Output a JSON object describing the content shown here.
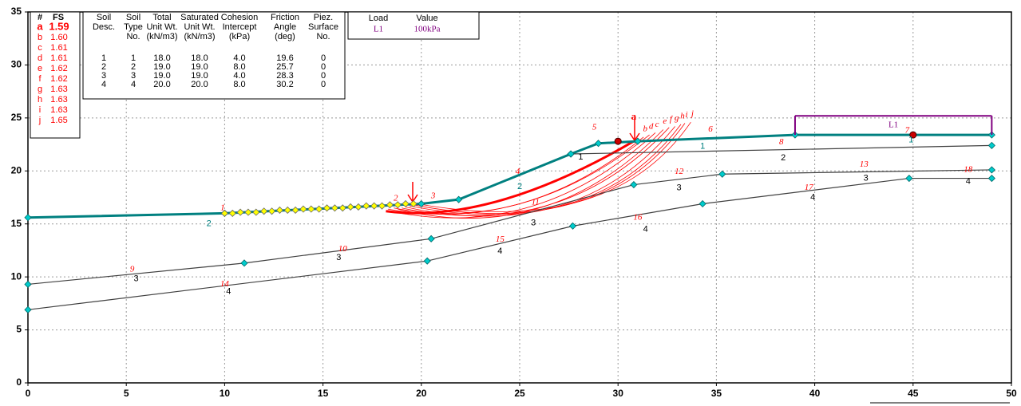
{
  "chart_data": {
    "type": "line",
    "xlim": [
      0,
      50
    ],
    "xticks": [
      0,
      5,
      10,
      15,
      20,
      25,
      30,
      35,
      40,
      45,
      50
    ],
    "ylim": [
      0,
      35
    ],
    "yticks": [
      0,
      5,
      10,
      15,
      20,
      25,
      30,
      35
    ],
    "grid": true,
    "boundaries": [
      {
        "color": "#008080",
        "x": [
          0,
          10,
          20,
          21.9,
          27.6,
          29,
          31,
          39,
          49
        ],
        "values": [
          15.6,
          16,
          16.9,
          17.3,
          21.6,
          22.6,
          22.8,
          23.4,
          23.4
        ]
      },
      {
        "color": "#404040",
        "x": [
          27.6,
          49
        ],
        "values": [
          21.6,
          22.4
        ]
      },
      {
        "color": "#404040",
        "x": [
          0,
          11,
          20.5,
          30.8,
          35.3,
          49
        ],
        "values": [
          9.3,
          11.3,
          13.6,
          18.7,
          19.7,
          20.1
        ]
      },
      {
        "color": "#404040",
        "x": [
          0,
          20.3,
          27.7,
          34.3,
          44.8,
          49
        ],
        "values": [
          6.9,
          11.5,
          14.8,
          16.9,
          19.3,
          19.3
        ]
      }
    ],
    "search_points": {
      "color": "#ffff00",
      "x": [
        10.0,
        10.4,
        10.8,
        11.2,
        11.6,
        12.0,
        12.4,
        12.8,
        13.2,
        13.6,
        14.0,
        14.4,
        14.8,
        15.2,
        15.6,
        16.0,
        16.4,
        16.8,
        17.2,
        17.6,
        18.0,
        18.4,
        18.8,
        19.2,
        19.6
      ],
      "values": [
        16.0,
        16.0,
        16.1,
        16.1,
        16.1,
        16.2,
        16.2,
        16.3,
        16.3,
        16.3,
        16.4,
        16.4,
        16.4,
        16.5,
        16.5,
        16.5,
        16.6,
        16.6,
        16.7,
        16.7,
        16.7,
        16.8,
        16.8,
        16.9,
        16.9
      ]
    },
    "red_points": {
      "color": "#cc0000",
      "x": [
        30,
        45
      ],
      "values": [
        22.8,
        23.4
      ]
    },
    "circles": [
      {
        "name": "a",
        "x": [
          18.2,
          24,
          30.8
        ],
        "values": [
          16.2,
          17.2,
          22.8
        ]
      },
      {
        "name": "b",
        "x": [
          18.3,
          25,
          31.3
        ],
        "values": [
          16.4,
          16.9,
          23.2
        ]
      },
      {
        "name": "c",
        "x": [
          18.4,
          25.5,
          31.9
        ],
        "values": [
          16.2,
          16.6,
          23.6
        ]
      },
      {
        "name": "d",
        "x": [
          18.6,
          25.2,
          31.6
        ],
        "values": [
          16.5,
          17.0,
          23.4
        ]
      },
      {
        "name": "e",
        "x": [
          18.8,
          26,
          32.3
        ],
        "values": [
          16.4,
          16.5,
          23.9
        ]
      },
      {
        "name": "f",
        "x": [
          19.0,
          26.5,
          32.6
        ],
        "values": [
          16.5,
          16.8,
          24.1
        ]
      },
      {
        "name": "g",
        "x": [
          19.2,
          27,
          32.9
        ],
        "values": [
          16.6,
          16.7,
          24.2
        ]
      },
      {
        "name": "h",
        "x": [
          19.4,
          27.5,
          33.2
        ],
        "values": [
          16.7,
          16.9,
          24.4
        ]
      },
      {
        "name": "i",
        "x": [
          19.6,
          27.8,
          33.4
        ],
        "values": [
          16.8,
          17.0,
          24.5
        ]
      },
      {
        "name": "j",
        "x": [
          19.8,
          28.2,
          33.7
        ],
        "values": [
          16.9,
          17.2,
          24.6
        ]
      }
    ],
    "load": {
      "name": "L1",
      "color": "#800080",
      "x": [
        39,
        49
      ],
      "values": [
        25.2,
        25.2
      ],
      "base": 23.4
    },
    "annotations": [
      {
        "text": "1",
        "x": 9.9,
        "y": 16.5,
        "color": "#ff0000"
      },
      {
        "text": "2",
        "x": 18.7,
        "y": 17.4,
        "color": "#ff0000"
      },
      {
        "text": "3",
        "x": 20.6,
        "y": 17.6,
        "color": "#ff0000"
      },
      {
        "text": "4",
        "x": 24.9,
        "y": 19.9,
        "color": "#ff0000"
      },
      {
        "text": "5",
        "x": 28.8,
        "y": 24.1,
        "color": "#ff0000"
      },
      {
        "text": "6",
        "x": 34.7,
        "y": 23.9,
        "color": "#ff0000"
      },
      {
        "text": "7",
        "x": 44.7,
        "y": 23.8,
        "color": "#ff0000"
      },
      {
        "text": "8",
        "x": 38.3,
        "y": 22.7,
        "color": "#ff0000"
      },
      {
        "text": "9",
        "x": 5.3,
        "y": 10.7,
        "color": "#ff0000"
      },
      {
        "text": "10",
        "x": 16,
        "y": 12.6,
        "color": "#ff0000"
      },
      {
        "text": "11",
        "x": 25.8,
        "y": 17.0,
        "color": "#ff0000"
      },
      {
        "text": "12",
        "x": 33.1,
        "y": 19.9,
        "color": "#ff0000"
      },
      {
        "text": "13",
        "x": 42.5,
        "y": 20.6,
        "color": "#ff0000"
      },
      {
        "text": "14",
        "x": 10,
        "y": 9.3,
        "color": "#ff0000"
      },
      {
        "text": "15",
        "x": 24,
        "y": 13.5,
        "color": "#ff0000"
      },
      {
        "text": "16",
        "x": 31,
        "y": 15.6,
        "color": "#ff0000"
      },
      {
        "text": "17",
        "x": 39.7,
        "y": 18.4,
        "color": "#ff0000"
      },
      {
        "text": "18",
        "x": 47.8,
        "y": 20.1,
        "color": "#ff0000"
      },
      {
        "text": "2",
        "x": 9.2,
        "y": 15.0,
        "color": "#008080"
      },
      {
        "text": "2",
        "x": 25,
        "y": 18.5,
        "color": "#008080"
      },
      {
        "text": "1",
        "x": 28.1,
        "y": 21.3,
        "color": "#000000"
      },
      {
        "text": "1",
        "x": 34.3,
        "y": 22.3,
        "color": "#008080"
      },
      {
        "text": "1",
        "x": 44.9,
        "y": 22.9,
        "color": "#008080"
      },
      {
        "text": "2",
        "x": 38.4,
        "y": 21.2,
        "color": "#000000"
      },
      {
        "text": "3",
        "x": 5.5,
        "y": 9.8,
        "color": "#000000"
      },
      {
        "text": "3",
        "x": 15.8,
        "y": 11.8,
        "color": "#000000"
      },
      {
        "text": "3",
        "x": 25.7,
        "y": 15.1,
        "color": "#000000"
      },
      {
        "text": "3",
        "x": 33.1,
        "y": 18.4,
        "color": "#000000"
      },
      {
        "text": "3",
        "x": 42.6,
        "y": 19.3,
        "color": "#000000"
      },
      {
        "text": "4",
        "x": 10.2,
        "y": 8.6,
        "color": "#000000"
      },
      {
        "text": "4",
        "x": 24,
        "y": 12.4,
        "color": "#000000"
      },
      {
        "text": "4",
        "x": 31.4,
        "y": 14.5,
        "color": "#000000"
      },
      {
        "text": "4",
        "x": 39.9,
        "y": 17.5,
        "color": "#000000"
      },
      {
        "text": "4",
        "x": 47.8,
        "y": 19.0,
        "color": "#000000"
      }
    ],
    "fs_table": {
      "header": [
        "#",
        "FS"
      ],
      "rows": [
        [
          "a",
          "1.59"
        ],
        [
          "b",
          "1.60"
        ],
        [
          "c",
          "1.61"
        ],
        [
          "d",
          "1.61"
        ],
        [
          "e",
          "1.62"
        ],
        [
          "f",
          "1.62"
        ],
        [
          "g",
          "1.63"
        ],
        [
          "h",
          "1.63"
        ],
        [
          "i",
          "1.63"
        ],
        [
          "j",
          "1.65"
        ]
      ]
    },
    "soil_table": {
      "header": [
        [
          "Soil",
          "Desc.",
          ""
        ],
        [
          "Soil",
          "Type",
          "No."
        ],
        [
          "Total",
          "Unit Wt.",
          "(kN/m3)"
        ],
        [
          "Saturated",
          "Unit Wt.",
          "(kN/m3)"
        ],
        [
          "Cohesion",
          "Intercept",
          "(kPa)"
        ],
        [
          "Friction",
          "Angle",
          "(deg)"
        ],
        [
          "Piez.",
          "Surface",
          "No."
        ]
      ],
      "rows": [
        [
          "1",
          "1",
          "18.0",
          "18.0",
          "4.0",
          "19.6",
          "0"
        ],
        [
          "2",
          "2",
          "19.0",
          "19.0",
          "8.0",
          "25.7",
          "0"
        ],
        [
          "3",
          "3",
          "19.0",
          "19.0",
          "4.0",
          "28.3",
          "0"
        ],
        [
          "4",
          "4",
          "20.0",
          "20.0",
          "8.0",
          "30.2",
          "0"
        ]
      ]
    },
    "load_table": {
      "header": [
        "Load",
        "Value"
      ],
      "rows": [
        [
          "L1",
          "100kPa"
        ]
      ]
    }
  }
}
